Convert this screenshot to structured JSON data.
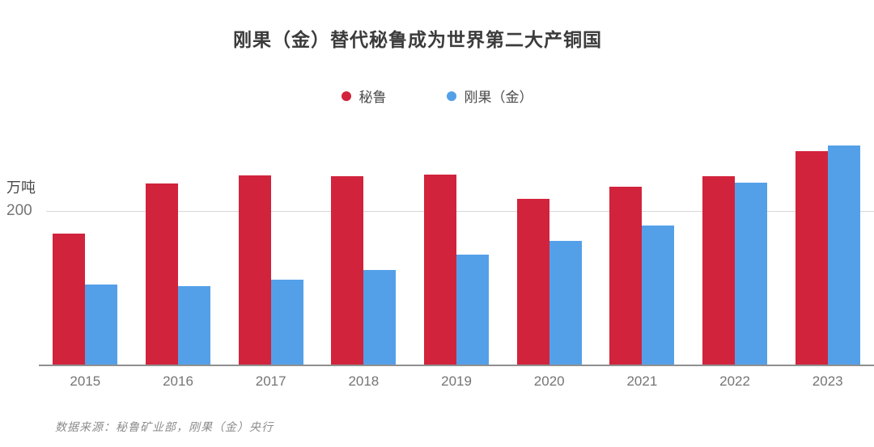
{
  "chart_data": {
    "type": "bar",
    "title": "刚果（金）替代秘鲁成为世界第二大产铜国",
    "unit_label": "万吨",
    "y_tick_label": "200",
    "y_gridlines": [
      200
    ],
    "ylim": [
      0,
      314
    ],
    "grid": "single horizontal line at 200",
    "legend_position": "top-center",
    "categories": [
      "2015",
      "2016",
      "2017",
      "2018",
      "2019",
      "2020",
      "2021",
      "2022",
      "2023"
    ],
    "series": [
      {
        "name": "秘鲁",
        "color": "#d2233c",
        "values": [
          170,
          235,
          245,
          244,
          246,
          215,
          230,
          244,
          276
        ]
      },
      {
        "name": "刚果（金）",
        "color": "#54a0e8",
        "values": [
          104,
          102,
          110,
          123,
          142,
          160,
          180,
          236,
          284
        ]
      }
    ],
    "source": "数据来源：秘鲁矿业部，刚果（金）央行"
  },
  "colors": {
    "title_text": "#3b3b3b",
    "axis_text": "#757575",
    "gridline": "#d7d7d7",
    "baseline": "#8f8f8f",
    "source_text": "#8c8c8c"
  }
}
